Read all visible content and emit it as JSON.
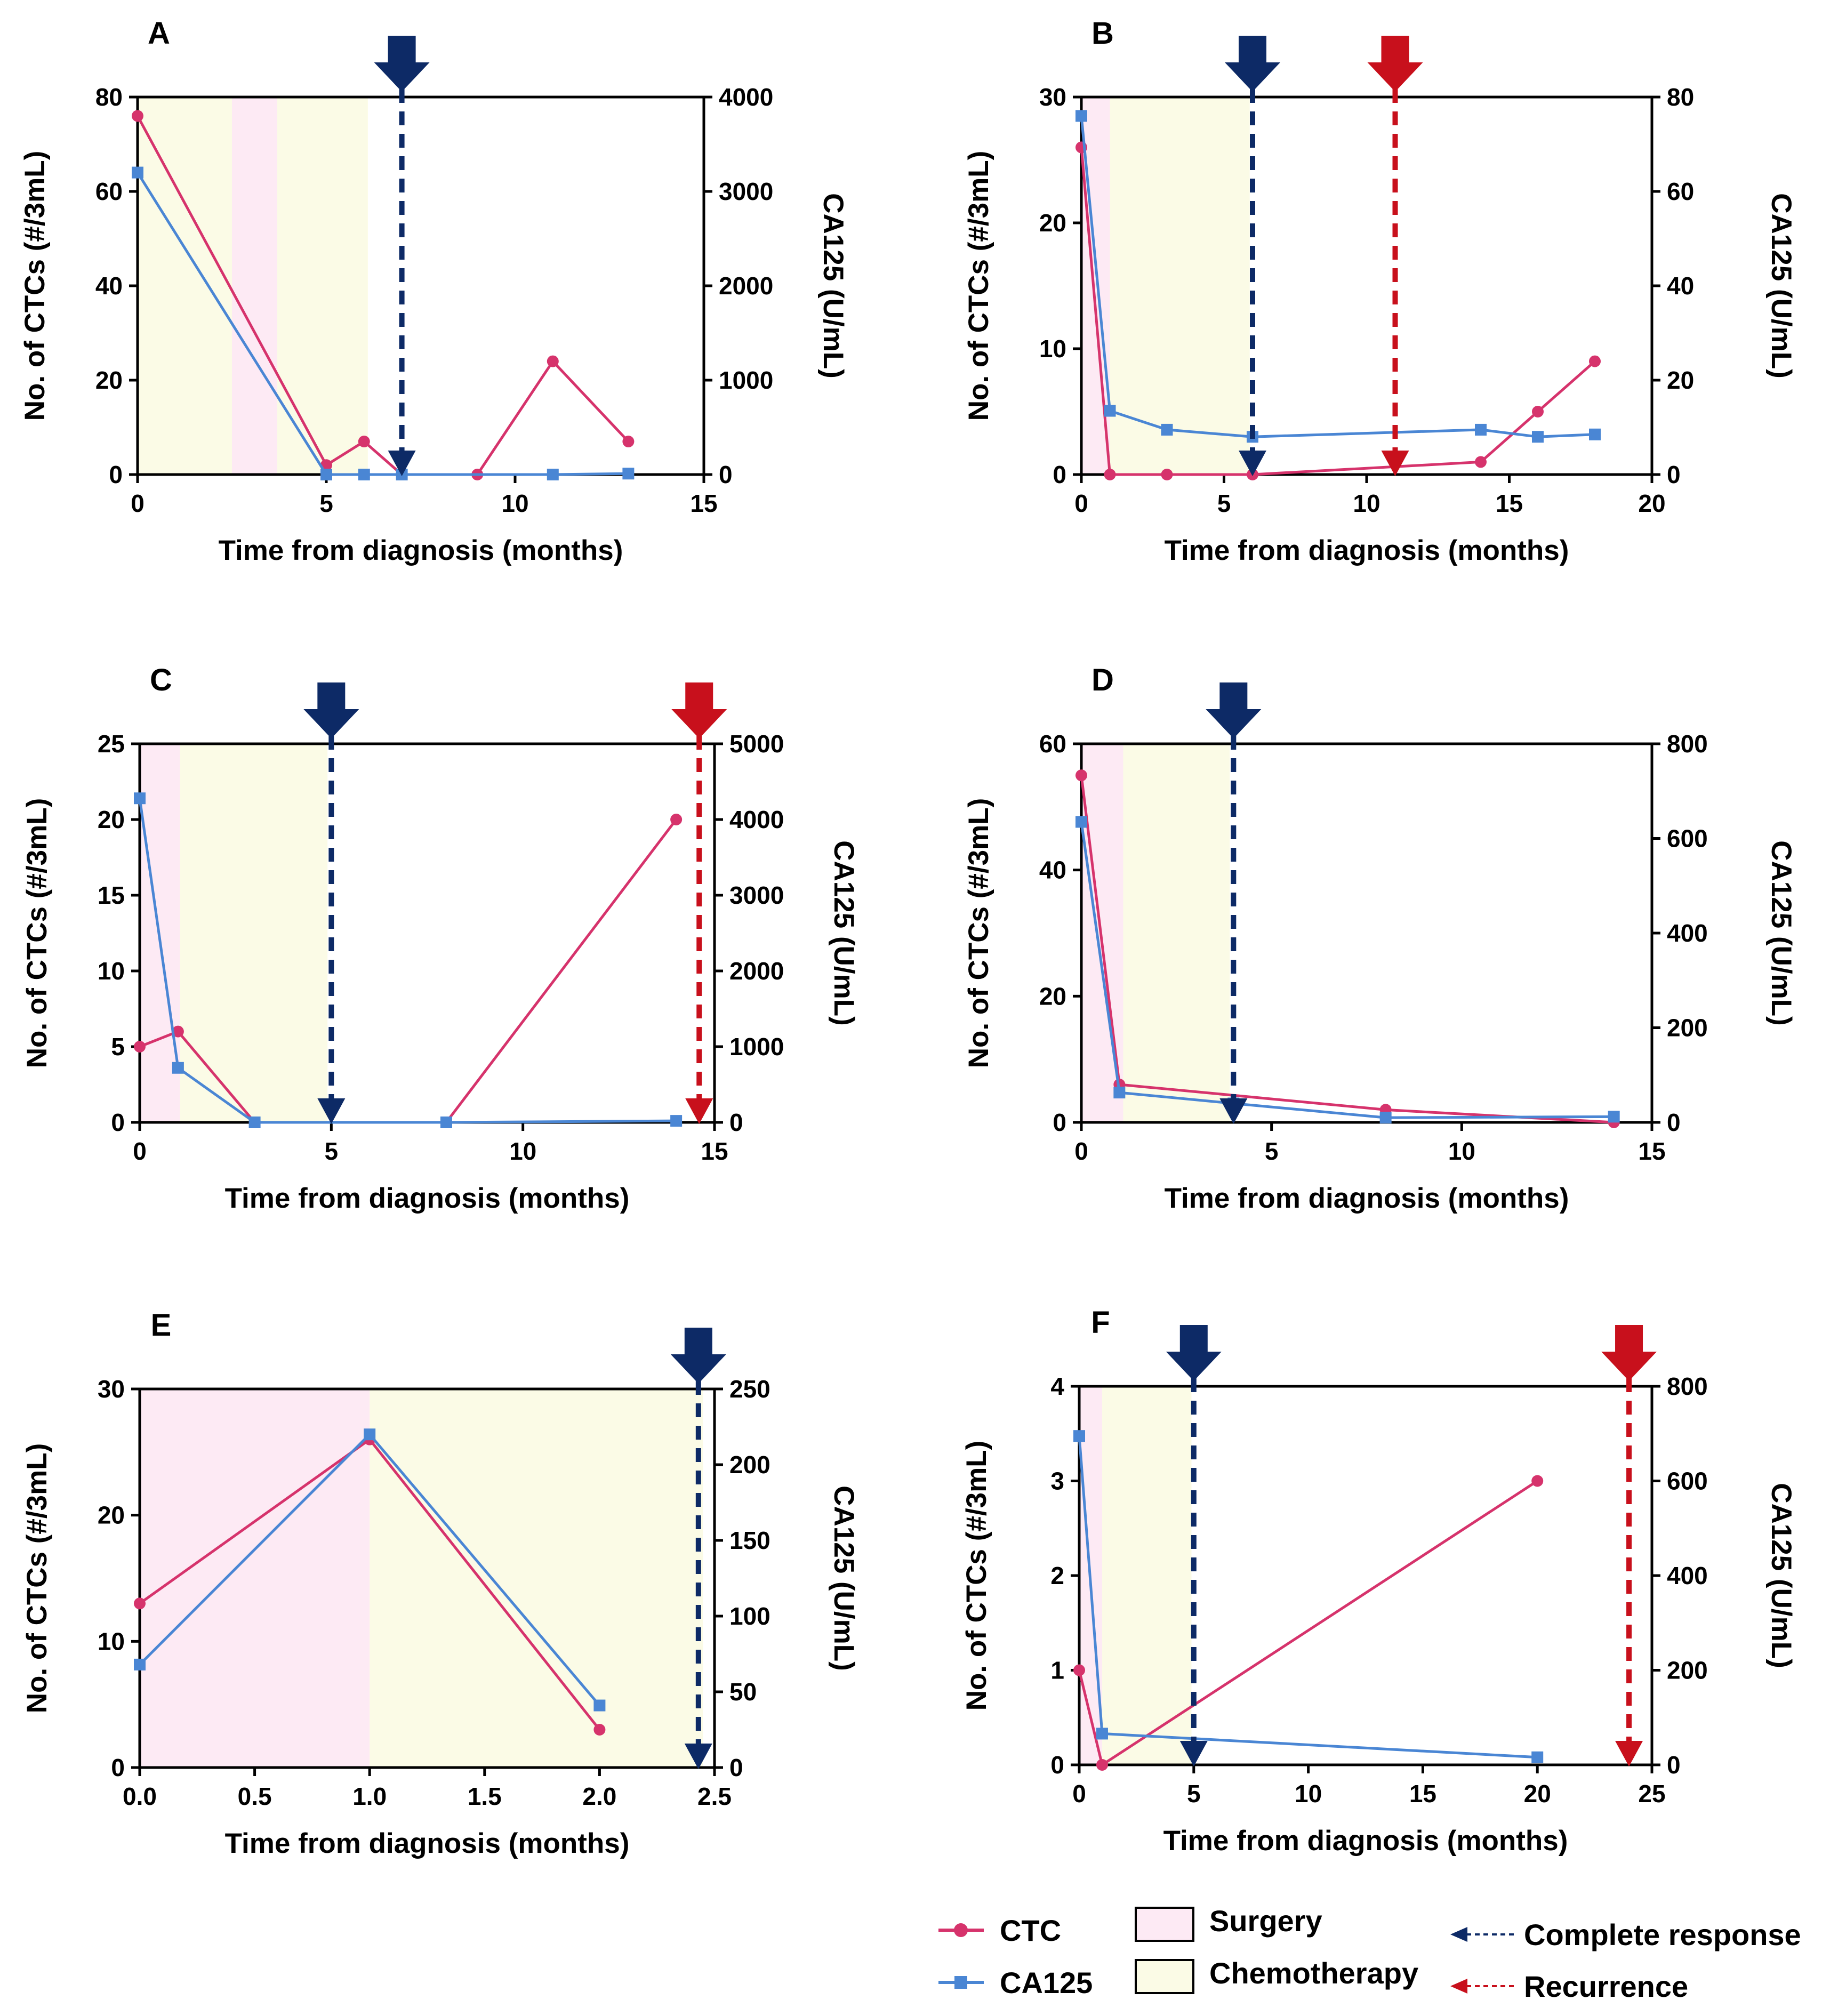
{
  "colors": {
    "ctc": "#d6336c",
    "ca125": "#4a86d4",
    "surgery": "#fdeaf4",
    "chemotherapy": "#fbfbe6",
    "complete_response": "#0d2a66",
    "recurrence": "#c8101c"
  },
  "legend": {
    "ctc": "CTC",
    "ca125": "CA125",
    "surgery": "Surgery",
    "chemotherapy": "Chemotherapy",
    "complete_response": "Complete response",
    "recurrence": "Recurrence"
  },
  "chart_data": [
    {
      "panel": "A",
      "type": "line",
      "xlabel": "Time from diagnosis (months)",
      "ylabel": "No. of CTCs (#/3mL)",
      "y2label": "CA125 (U/mL)",
      "xlim": [
        0,
        15
      ],
      "xticks": [
        0,
        5,
        10,
        15
      ],
      "xtick_labels": [
        "0",
        "5",
        "10",
        "15"
      ],
      "ylim": [
        0,
        80
      ],
      "yticks": [
        0,
        20,
        40,
        60,
        80
      ],
      "y2lim": [
        0,
        4000
      ],
      "y2ticks": [
        0,
        1000,
        2000,
        3000,
        4000
      ],
      "regions": [
        {
          "kind": "chemotherapy",
          "from": 0,
          "to": 2.5
        },
        {
          "kind": "surgery",
          "from": 2.5,
          "to": 3.7
        },
        {
          "kind": "chemotherapy",
          "from": 3.7,
          "to": 6.1
        }
      ],
      "events": [
        {
          "kind": "complete_response",
          "x": 7
        }
      ],
      "series": [
        {
          "name": "CTC",
          "axis": "left",
          "x": [
            0,
            5,
            6,
            7,
            9,
            11,
            13
          ],
          "values": [
            76,
            2,
            7,
            0,
            0,
            24,
            7
          ]
        },
        {
          "name": "CA125",
          "axis": "right",
          "x": [
            0,
            5,
            6,
            7,
            11,
            13
          ],
          "values": [
            3200,
            0,
            0,
            0,
            0,
            10
          ]
        }
      ]
    },
    {
      "panel": "B",
      "type": "line",
      "xlabel": "Time from diagnosis (months)",
      "ylabel": "No. of CTCs (#/3mL)",
      "y2label": "CA125 (U/mL)",
      "xlim": [
        0,
        20
      ],
      "xticks": [
        0,
        5,
        10,
        15,
        20
      ],
      "xtick_labels": [
        "0",
        "5",
        "10",
        "15",
        "20"
      ],
      "ylim": [
        0,
        30
      ],
      "yticks": [
        0,
        10,
        20,
        30
      ],
      "y2lim": [
        0,
        80
      ],
      "y2ticks": [
        0,
        20,
        40,
        60,
        80
      ],
      "regions": [
        {
          "kind": "surgery",
          "from": 0,
          "to": 1
        },
        {
          "kind": "chemotherapy",
          "from": 1,
          "to": 5.9
        }
      ],
      "events": [
        {
          "kind": "complete_response",
          "x": 6
        },
        {
          "kind": "recurrence",
          "x": 11
        }
      ],
      "series": [
        {
          "name": "CTC",
          "axis": "left",
          "x": [
            0,
            1,
            3,
            6,
            14,
            16,
            18
          ],
          "values": [
            26,
            0,
            0,
            0,
            1,
            5,
            9
          ]
        },
        {
          "name": "CA125",
          "axis": "right",
          "x": [
            0,
            1,
            3,
            6,
            14,
            16,
            18
          ],
          "values": [
            76,
            13.5,
            9.5,
            8,
            9.5,
            8,
            8.5
          ]
        }
      ]
    },
    {
      "panel": "C",
      "type": "line",
      "xlabel": "Time from diagnosis (months)",
      "ylabel": "No. of CTCs (#/3mL)",
      "y2label": "CA125 (U/mL)",
      "xlim": [
        0,
        15
      ],
      "xticks": [
        0,
        5,
        10,
        15
      ],
      "xtick_labels": [
        "0",
        "5",
        "10",
        "15"
      ],
      "ylim": [
        0,
        25
      ],
      "yticks": [
        0,
        5,
        10,
        15,
        20,
        25
      ],
      "y2lim": [
        0,
        5000
      ],
      "y2ticks": [
        0,
        1000,
        2000,
        3000,
        4000,
        5000
      ],
      "regions": [
        {
          "kind": "surgery",
          "from": 0,
          "to": 1.05
        },
        {
          "kind": "chemotherapy",
          "from": 1.05,
          "to": 4.9
        }
      ],
      "events": [
        {
          "kind": "complete_response",
          "x": 5
        },
        {
          "kind": "recurrence",
          "x": 14.6
        }
      ],
      "series": [
        {
          "name": "CTC",
          "axis": "left",
          "x": [
            0,
            1,
            3,
            8,
            14
          ],
          "values": [
            5,
            6,
            0,
            0,
            20
          ]
        },
        {
          "name": "CA125",
          "axis": "right",
          "x": [
            0,
            1,
            3,
            8,
            14
          ],
          "values": [
            4280,
            720,
            0,
            0,
            20
          ]
        }
      ]
    },
    {
      "panel": "D",
      "type": "line",
      "xlabel": "Time from diagnosis (months)",
      "ylabel": "No. of CTCs (#/3mL)",
      "y2label": "CA125 (U/mL)",
      "xlim": [
        0,
        15
      ],
      "xticks": [
        0,
        5,
        10,
        15
      ],
      "xtick_labels": [
        "0",
        "5",
        "10",
        "15"
      ],
      "ylim": [
        0,
        60
      ],
      "yticks": [
        0,
        20,
        40,
        60
      ],
      "y2lim": [
        0,
        800
      ],
      "y2ticks": [
        0,
        200,
        400,
        600,
        800
      ],
      "y2tick_labels": [
        "0",
        "200",
        "400",
        "600",
        "800"
      ],
      "regions": [
        {
          "kind": "surgery",
          "from": 0,
          "to": 1.1
        },
        {
          "kind": "chemotherapy",
          "from": 1.1,
          "to": 3.9
        }
      ],
      "events": [
        {
          "kind": "complete_response",
          "x": 4
        }
      ],
      "series": [
        {
          "name": "CTC",
          "axis": "left",
          "x": [
            0,
            1,
            8,
            14
          ],
          "values": [
            55,
            6,
            2,
            0
          ]
        },
        {
          "name": "CA125",
          "axis": "right",
          "x": [
            0,
            1,
            4,
            8,
            14
          ],
          "values": [
            635,
            63,
            40,
            10,
            12
          ]
        }
      ]
    },
    {
      "panel": "E",
      "type": "line",
      "xlabel": "Time from diagnosis (months)",
      "ylabel": "No. of CTCs (#/3mL)",
      "y2label": "CA125 (U/mL)",
      "xlim": [
        0,
        2.5
      ],
      "xticks": [
        0,
        0.5,
        1,
        1.5,
        2,
        2.5
      ],
      "xtick_labels": [
        "0.0",
        "0.5",
        "1.0",
        "1.5",
        "2.0",
        "2.5"
      ],
      "ylim": [
        0,
        30
      ],
      "yticks": [
        0,
        10,
        20,
        30
      ],
      "y2lim": [
        0,
        250
      ],
      "y2ticks": [
        0,
        50,
        100,
        150,
        200,
        250
      ],
      "regions": [
        {
          "kind": "surgery",
          "from": 0,
          "to": 1
        },
        {
          "kind": "chemotherapy",
          "from": 1,
          "to": 2.45
        }
      ],
      "events": [
        {
          "kind": "complete_response",
          "x": 2.43
        }
      ],
      "series": [
        {
          "name": "CTC",
          "axis": "left",
          "x": [
            0,
            1,
            2
          ],
          "values": [
            13,
            26,
            3
          ]
        },
        {
          "name": "CA125",
          "axis": "right",
          "x": [
            0,
            1,
            2
          ],
          "values": [
            68,
            220,
            41
          ]
        }
      ]
    },
    {
      "panel": "F",
      "type": "line",
      "xlabel": "Time from diagnosis (months)",
      "ylabel": "No. of CTCs (#/3mL)",
      "y2label": "CA125 (U/mL)",
      "xlim": [
        0,
        25
      ],
      "xticks": [
        0,
        5,
        10,
        15,
        20,
        25
      ],
      "xtick_labels": [
        "0",
        "5",
        "10",
        "15",
        "20",
        "25"
      ],
      "ylim": [
        0,
        4
      ],
      "yticks": [
        0,
        1,
        2,
        3,
        4
      ],
      "y2lim": [
        0,
        800
      ],
      "y2ticks": [
        0,
        200,
        400,
        600,
        800
      ],
      "regions": [
        {
          "kind": "surgery",
          "from": 0,
          "to": 1
        },
        {
          "kind": "chemotherapy",
          "from": 1,
          "to": 4.9
        }
      ],
      "events": [
        {
          "kind": "complete_response",
          "x": 5
        },
        {
          "kind": "recurrence",
          "x": 24
        }
      ],
      "series": [
        {
          "name": "CTC",
          "axis": "left",
          "x": [
            0,
            1,
            20
          ],
          "values": [
            1,
            0,
            3
          ]
        },
        {
          "name": "CA125",
          "axis": "right",
          "x": [
            0,
            1,
            20
          ],
          "values": [
            695,
            66,
            16
          ]
        }
      ]
    }
  ]
}
